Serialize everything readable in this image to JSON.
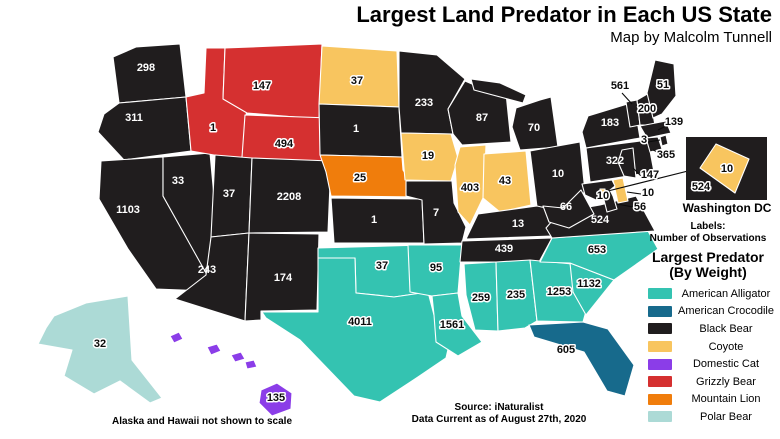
{
  "title": "Largest Land Predator in Each US State",
  "subtitle": "Map by Malcolm Tunnell",
  "labels_note": {
    "line1": "Labels:",
    "line2": "Number of Observations"
  },
  "legend": {
    "title_line1": "Largest Predator",
    "title_line2": "(By Weight)",
    "items": [
      {
        "label": "American Alligator",
        "color": "#34C3B1"
      },
      {
        "label": "American Crocodile",
        "color": "#176A8C"
      },
      {
        "label": "Black Bear",
        "color": "#201D1E"
      },
      {
        "label": "Coyote",
        "color": "#F8C55F"
      },
      {
        "label": "Domestic Cat",
        "color": "#8B3DE8"
      },
      {
        "label": "Grizzly Bear",
        "color": "#D53030"
      },
      {
        "label": "Mountain Lion",
        "color": "#F07D0C"
      },
      {
        "label": "Polar Bear",
        "color": "#ACDAD6"
      }
    ]
  },
  "inset": {
    "caption": "Washington DC",
    "dc_value": "10",
    "va_value": "524"
  },
  "notes": {
    "scale_note": "Alaska and Hawaii not shown to scale",
    "source_line1": "Source: iNaturalist",
    "source_line2": "Data Current as of August 27th, 2020"
  },
  "states": [
    {
      "name": "Washington",
      "abbr": "WA",
      "predator": "Black Bear",
      "value": 298
    },
    {
      "name": "Oregon",
      "abbr": "OR",
      "predator": "Black Bear",
      "value": 311
    },
    {
      "name": "California",
      "abbr": "CA",
      "predator": "Black Bear",
      "value": 1103
    },
    {
      "name": "Nevada",
      "abbr": "NV",
      "predator": "Black Bear",
      "value": 33
    },
    {
      "name": "Idaho",
      "abbr": "ID",
      "predator": "Grizzly Bear",
      "value": 1
    },
    {
      "name": "Montana",
      "abbr": "MT",
      "predator": "Grizzly Bear",
      "value": 147
    },
    {
      "name": "Wyoming",
      "abbr": "WY",
      "predator": "Grizzly Bear",
      "value": 494
    },
    {
      "name": "Utah",
      "abbr": "UT",
      "predator": "Black Bear",
      "value": 37
    },
    {
      "name": "Colorado",
      "abbr": "CO",
      "predator": "Black Bear",
      "value": 2208
    },
    {
      "name": "Arizona",
      "abbr": "AZ",
      "predator": "Black Bear",
      "value": 243
    },
    {
      "name": "New Mexico",
      "abbr": "NM",
      "predator": "Black Bear",
      "value": 174
    },
    {
      "name": "North Dakota",
      "abbr": "ND",
      "predator": "Coyote",
      "value": 37
    },
    {
      "name": "South Dakota",
      "abbr": "SD",
      "predator": "Black Bear",
      "value": 1
    },
    {
      "name": "Nebraska",
      "abbr": "NE",
      "predator": "Mountain Lion",
      "value": 25
    },
    {
      "name": "Kansas",
      "abbr": "KS",
      "predator": "Black Bear",
      "value": 1
    },
    {
      "name": "Oklahoma",
      "abbr": "OK",
      "predator": "American Alligator",
      "value": 37
    },
    {
      "name": "Texas",
      "abbr": "TX",
      "predator": "American Alligator",
      "value": 4011
    },
    {
      "name": "Minnesota",
      "abbr": "MN",
      "predator": "Black Bear",
      "value": 233
    },
    {
      "name": "Iowa",
      "abbr": "IA",
      "predator": "Coyote",
      "value": 19
    },
    {
      "name": "Missouri",
      "abbr": "MO",
      "predator": "Black Bear",
      "value": 7
    },
    {
      "name": "Arkansas",
      "abbr": "AR",
      "predator": "American Alligator",
      "value": 95
    },
    {
      "name": "Louisiana",
      "abbr": "LA",
      "predator": "American Alligator",
      "value": 1561
    },
    {
      "name": "Wisconsin",
      "abbr": "WI",
      "predator": "Black Bear",
      "value": 87
    },
    {
      "name": "Illinois",
      "abbr": "IL",
      "predator": "Coyote",
      "value": 403
    },
    {
      "name": "Michigan",
      "abbr": "MI",
      "predator": "Black Bear",
      "value": 70
    },
    {
      "name": "Indiana",
      "abbr": "IN",
      "predator": "Coyote",
      "value": 43
    },
    {
      "name": "Ohio",
      "abbr": "OH",
      "predator": "Black Bear",
      "value": 10
    },
    {
      "name": "Kentucky",
      "abbr": "KY",
      "predator": "Black Bear",
      "value": 13
    },
    {
      "name": "Tennessee",
      "abbr": "TN",
      "predator": "Black Bear",
      "value": 439
    },
    {
      "name": "Mississippi",
      "abbr": "MS",
      "predator": "American Alligator",
      "value": 259
    },
    {
      "name": "Alabama",
      "abbr": "AL",
      "predator": "American Alligator",
      "value": 235
    },
    {
      "name": "Georgia",
      "abbr": "GA",
      "predator": "American Alligator",
      "value": 1253
    },
    {
      "name": "South Carolina",
      "abbr": "SC",
      "predator": "American Alligator",
      "value": 1132
    },
    {
      "name": "North Carolina",
      "abbr": "NC",
      "predator": "American Alligator",
      "value": 653
    },
    {
      "name": "Florida",
      "abbr": "FL",
      "predator": "American Crocodile",
      "value": 605
    },
    {
      "name": "Virginia",
      "abbr": "VA",
      "predator": "Black Bear",
      "value": 524
    },
    {
      "name": "West Virginia",
      "abbr": "WV",
      "predator": "Black Bear",
      "value": 66
    },
    {
      "name": "Pennsylvania",
      "abbr": "PA",
      "predator": "Black Bear",
      "value": 322
    },
    {
      "name": "New York",
      "abbr": "NY",
      "predator": "Black Bear",
      "value": 183
    },
    {
      "name": "Vermont",
      "abbr": "VT",
      "predator": "Black Bear",
      "value": 561
    },
    {
      "name": "New Hampshire",
      "abbr": "NH",
      "predator": "Black Bear",
      "value": 200
    },
    {
      "name": "Maine",
      "abbr": "ME",
      "predator": "Black Bear",
      "value": 51
    },
    {
      "name": "Massachusetts",
      "abbr": "MA",
      "predator": "Black Bear",
      "value": 139
    },
    {
      "name": "Rhode Island",
      "abbr": "RI",
      "predator": "Black Bear",
      "value": 3
    },
    {
      "name": "Connecticut",
      "abbr": "CT",
      "predator": "Black Bear",
      "value": 365
    },
    {
      "name": "New Jersey",
      "abbr": "NJ",
      "predator": "Black Bear",
      "value": 147
    },
    {
      "name": "Delaware",
      "abbr": "DE",
      "predator": "Coyote",
      "value": 10
    },
    {
      "name": "Maryland",
      "abbr": "MD",
      "predator": "Black Bear",
      "value": 56
    },
    {
      "name": "Washington DC",
      "abbr": "DC",
      "predator": "Coyote",
      "value": 10
    },
    {
      "name": "Alaska",
      "abbr": "AK",
      "predator": "Polar Bear",
      "value": 32
    },
    {
      "name": "Hawaii",
      "abbr": "HI",
      "predator": "Domestic Cat",
      "value": 135
    }
  ]
}
